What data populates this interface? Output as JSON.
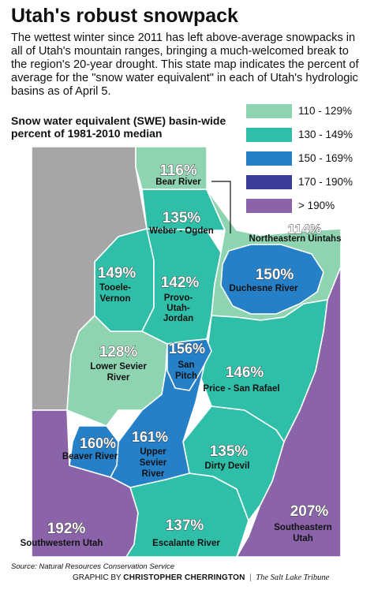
{
  "header": {
    "title": "Utah's robust snowpack",
    "intro": "The wettest winter since 2011 has left above-average snowpacks in all of Utah's mountain ranges, bringing a much-welcomed break to the region's 20-year drought. This state map indicates the percent of average  for the \"snow water equivalent\" in each of Utah's hydrologic basins as of April 5.",
    "subtitle": "Snow water equivalent (SWE) basin-wide percent of 1981-2010 median"
  },
  "legend": [
    {
      "label": "110 - 129%",
      "color": "#8fd4b0"
    },
    {
      "label": "130 - 149%",
      "color": "#2fbfa8"
    },
    {
      "label": "150 - 169%",
      "color": "#2680c8"
    },
    {
      "label": "170 - 190%",
      "color": "#3a3d98"
    },
    {
      "label": "> 190%",
      "color": "#8a63a9"
    }
  ],
  "basins": [
    {
      "name": "Bear River",
      "percent": "116%",
      "color": "#8fd4b0"
    },
    {
      "name": "Weber - Ogden",
      "percent": "135%",
      "color": "#2fbfa8"
    },
    {
      "name": "Northeastern Uintahs",
      "percent": "114%",
      "color": "#8fd4b0"
    },
    {
      "name": "Tooele-Vernon",
      "percent": "149%",
      "color": "#2fbfa8"
    },
    {
      "name": "Provo-Utah-Jordan",
      "percent": "142%",
      "color": "#2fbfa8"
    },
    {
      "name": "Duchesne River",
      "percent": "150%",
      "color": "#2680c8"
    },
    {
      "name": "Lower Sevier River",
      "percent": "128%",
      "color": "#8fd4b0"
    },
    {
      "name": "San Pitch",
      "percent": "156%",
      "color": "#2680c8"
    },
    {
      "name": "Price - San Rafael",
      "percent": "146%",
      "color": "#2fbfa8"
    },
    {
      "name": "Beaver River",
      "percent": "160%",
      "color": "#2680c8"
    },
    {
      "name": "Upper Sevier River",
      "percent": "161%",
      "color": "#2680c8"
    },
    {
      "name": "Dirty Devil",
      "percent": "135%",
      "color": "#2fbfa8"
    },
    {
      "name": "Southwestern Utah",
      "percent": "192%",
      "color": "#8a63a9"
    },
    {
      "name": "Escalante River",
      "percent": "137%",
      "color": "#2fbfa8"
    },
    {
      "name": "Southeastern Utah",
      "percent": "207%",
      "color": "#8a63a9"
    }
  ],
  "no_data_color": "#a6a6a6",
  "footer": {
    "source": "Source: Natural Resources Conservation Service",
    "credit_prefix": "GRAPHIC BY ",
    "credit_name": "CHRISTOPHER CHERRINGTON",
    "separator": "  |  ",
    "publication": "The Salt Lake Tribune"
  }
}
